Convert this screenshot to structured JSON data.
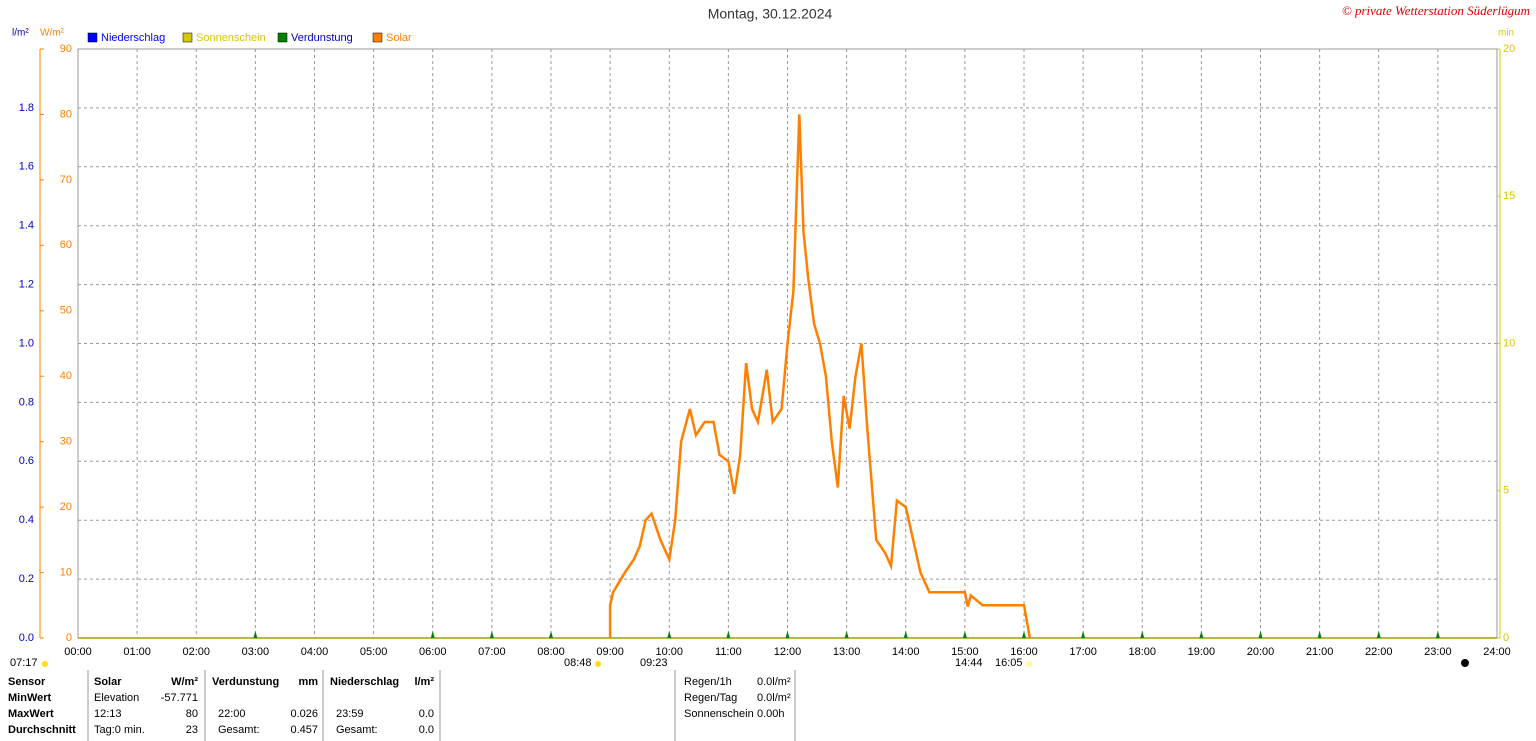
{
  "chart_data": {
    "type": "line",
    "title": "Montag, 30.12.2024",
    "copyright": "© private Wetterstation Süderlügum",
    "ylabel": "l/m²",
    "y2label": "W/m²",
    "y3label": "min",
    "xlim": [
      0,
      24
    ],
    "xticks": [
      {
        "value": 0,
        "label": "00:00"
      },
      {
        "value": 1,
        "label": "01:00"
      },
      {
        "value": 2,
        "label": "02:00"
      },
      {
        "value": 3,
        "label": "03:00"
      },
      {
        "value": 4,
        "label": "04:00"
      },
      {
        "value": 5,
        "label": "05:00"
      },
      {
        "value": 6,
        "label": "06:00"
      },
      {
        "value": 7,
        "label": "07:00"
      },
      {
        "value": 8,
        "label": "08:00"
      },
      {
        "value": 9,
        "label": "09:00"
      },
      {
        "value": 10,
        "label": "10:00"
      },
      {
        "value": 11,
        "label": "11:00"
      },
      {
        "value": 12,
        "label": "12:00"
      },
      {
        "value": 13,
        "label": "13:00"
      },
      {
        "value": 14,
        "label": "14:00"
      },
      {
        "value": 15,
        "label": "15:00"
      },
      {
        "value": 16,
        "label": "16:00"
      },
      {
        "value": 17,
        "label": "17:00"
      },
      {
        "value": 18,
        "label": "18:00"
      },
      {
        "value": 19,
        "label": "19:00"
      },
      {
        "value": 20,
        "label": "20:00"
      },
      {
        "value": 21,
        "label": "21:00"
      },
      {
        "value": 22,
        "label": "22:00"
      },
      {
        "value": 23,
        "label": "23:00"
      },
      {
        "value": 24,
        "label": "24:00"
      }
    ],
    "ylim": [
      0,
      2
    ],
    "yticks": [
      {
        "value": 0,
        "label": "0.0"
      },
      0.2,
      0.4,
      0.6,
      0.8,
      {
        "value": 1,
        "label": "1.0"
      },
      1.2,
      1.4,
      1.6,
      1.8
    ],
    "y2lim": [
      0,
      90
    ],
    "y2ticks": [
      0,
      10,
      20,
      30,
      40,
      50,
      60,
      70,
      80,
      90
    ],
    "y3lim": [
      0,
      20
    ],
    "y3ticks": [
      0,
      5,
      10,
      15,
      20
    ],
    "grid": true,
    "series": [
      {
        "name": "Niederschlag",
        "color": "#0000ff",
        "axis": "y",
        "x": [
          0,
          24
        ],
        "values": [
          0,
          0
        ]
      },
      {
        "name": "Sonnenschein",
        "color": "#d4c800",
        "axis": "y3",
        "x": [
          0,
          24
        ],
        "values": [
          0,
          0
        ]
      },
      {
        "name": "Verdunstung",
        "color": "#008000",
        "axis": "y",
        "marker": "triangle",
        "x": [
          3,
          6,
          7,
          8,
          10,
          11,
          12,
          13,
          14,
          15,
          16,
          17,
          18,
          19,
          20,
          21,
          22,
          23
        ],
        "values": [
          0,
          0,
          0,
          0,
          0,
          0,
          0,
          0,
          0,
          0,
          0,
          0,
          0,
          0,
          0,
          0,
          0,
          0
        ]
      },
      {
        "name": "Solar",
        "color": "#ff8000",
        "axis": "y2",
        "x": [
          9.0,
          9.0,
          9.05,
          9.25,
          9.4,
          9.5,
          9.6,
          9.7,
          9.85,
          10.0,
          10.1,
          10.2,
          10.35,
          10.45,
          10.6,
          10.75,
          10.85,
          11.0,
          11.1,
          11.2,
          11.3,
          11.4,
          11.5,
          11.65,
          11.75,
          11.9,
          12.0,
          12.1,
          12.2,
          12.27,
          12.35,
          12.45,
          12.55,
          12.65,
          12.75,
          12.85,
          12.95,
          13.05,
          13.15,
          13.25,
          13.35,
          13.5,
          13.65,
          13.75,
          13.85,
          14.0,
          14.15,
          14.25,
          14.4,
          15.0,
          15.05,
          15.1,
          15.3,
          15.75,
          16.0,
          16.1
        ],
        "values": [
          0,
          5,
          7,
          10,
          12,
          14,
          18,
          19,
          15,
          12,
          18,
          30,
          35,
          31,
          33,
          33,
          28,
          27,
          22,
          28,
          42,
          35,
          33,
          41,
          33,
          35,
          45,
          53,
          80,
          62,
          55,
          48,
          45,
          40,
          30,
          23,
          37,
          32,
          40,
          45,
          32,
          15,
          13,
          11,
          21,
          20,
          14,
          10,
          7,
          7,
          4.8,
          6.5,
          5,
          5,
          5,
          0
        ]
      }
    ],
    "annotations": [
      "07:17",
      "08:48",
      "09:23",
      "14:44",
      "16:05"
    ]
  },
  "stats": {
    "labels": [
      "Sensor",
      "MinWert",
      "MaxWert",
      "Durchschnitt"
    ],
    "solar": {
      "header": [
        "Solar",
        "W/m²"
      ],
      "min": [
        "Elevation",
        "-57.771"
      ],
      "max": [
        "12:13",
        "80"
      ],
      "avg": [
        "Tag:0 min.",
        "23"
      ]
    },
    "verdunstung": {
      "header": [
        "Verdunstung",
        "mm"
      ],
      "max": [
        "22:00",
        "0.026"
      ],
      "avg": [
        "Gesamt:",
        "0.457"
      ]
    },
    "niederschlag": {
      "header": [
        "Niederschlag",
        "l/m²"
      ],
      "max": [
        "23:59",
        "0.0"
      ],
      "avg": [
        "Gesamt:",
        "0.0"
      ]
    },
    "info": [
      [
        "Regen/1h",
        "0.0l/m²"
      ],
      [
        "Regen/Tag",
        "0.0l/m²"
      ],
      [
        "Sonnenschein",
        "0.00h"
      ]
    ]
  }
}
